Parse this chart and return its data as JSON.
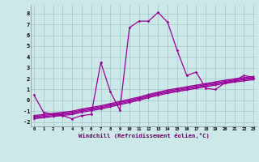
{
  "xlabel": "Windchill (Refroidissement éolien,°C)",
  "x_values": [
    0,
    1,
    2,
    3,
    4,
    5,
    6,
    7,
    8,
    9,
    10,
    11,
    12,
    13,
    14,
    15,
    16,
    17,
    18,
    19,
    20,
    21,
    22,
    23
  ],
  "main_line": [
    0.5,
    -1.1,
    -1.3,
    -1.4,
    -1.7,
    -1.4,
    -1.3,
    3.5,
    0.8,
    -0.9,
    6.7,
    7.3,
    7.3,
    8.1,
    7.2,
    4.6,
    2.3,
    2.6,
    1.1,
    1.0,
    1.6,
    1.8,
    2.3,
    2.1
  ],
  "diag_line1": [
    -1.5,
    -1.4,
    -1.3,
    -1.2,
    -1.1,
    -0.9,
    -0.75,
    -0.6,
    -0.4,
    -0.2,
    0.0,
    0.2,
    0.45,
    0.65,
    0.85,
    1.0,
    1.15,
    1.3,
    1.45,
    1.6,
    1.75,
    1.88,
    2.0,
    2.1
  ],
  "diag_line2": [
    -1.6,
    -1.5,
    -1.4,
    -1.3,
    -1.2,
    -1.0,
    -0.85,
    -0.7,
    -0.5,
    -0.3,
    -0.1,
    0.1,
    0.35,
    0.55,
    0.75,
    0.9,
    1.05,
    1.2,
    1.35,
    1.5,
    1.65,
    1.78,
    1.9,
    2.0
  ],
  "diag_line3": [
    -1.7,
    -1.6,
    -1.5,
    -1.4,
    -1.3,
    -1.1,
    -0.95,
    -0.8,
    -0.6,
    -0.4,
    -0.2,
    0.0,
    0.25,
    0.45,
    0.65,
    0.8,
    0.95,
    1.1,
    1.25,
    1.4,
    1.55,
    1.68,
    1.8,
    1.9
  ],
  "diag_line4": [
    -1.4,
    -1.3,
    -1.2,
    -1.1,
    -1.0,
    -0.8,
    -0.65,
    -0.5,
    -0.3,
    -0.1,
    0.1,
    0.3,
    0.55,
    0.75,
    0.95,
    1.1,
    1.25,
    1.4,
    1.55,
    1.7,
    1.85,
    1.98,
    2.1,
    2.2
  ],
  "line_color": "#990099",
  "bg_color": "#cce8e8",
  "grid_color": "#aacccc",
  "ylim": [
    -2.4,
    8.8
  ],
  "xlim": [
    -0.3,
    23.3
  ],
  "yticks": [
    -2,
    -1,
    0,
    1,
    2,
    3,
    4,
    5,
    6,
    7,
    8
  ],
  "xticks": [
    0,
    1,
    2,
    3,
    4,
    5,
    6,
    7,
    8,
    9,
    10,
    11,
    12,
    13,
    14,
    15,
    16,
    17,
    18,
    19,
    20,
    21,
    22,
    23
  ]
}
